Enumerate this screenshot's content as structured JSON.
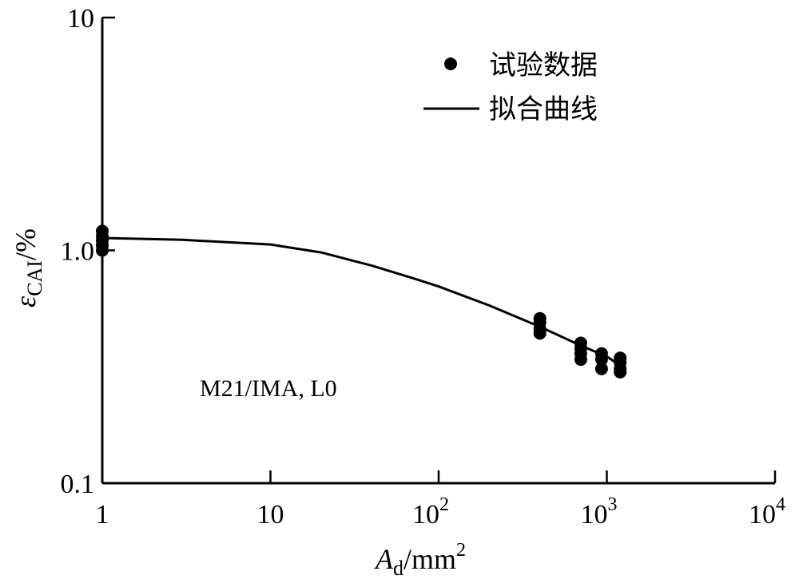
{
  "chart_data": {
    "type": "scatter",
    "x_scale": "log",
    "y_scale": "log",
    "xlim": [
      1,
      10000
    ],
    "ylim": [
      0.1,
      10
    ],
    "x_ticks": [
      {
        "value": 1,
        "base": "1",
        "exp": ""
      },
      {
        "value": 10,
        "base": "10",
        "exp": ""
      },
      {
        "value": 100,
        "base": "10",
        "exp": "2"
      },
      {
        "value": 1000,
        "base": "10",
        "exp": "3"
      },
      {
        "value": 10000,
        "base": "10",
        "exp": "4"
      }
    ],
    "y_ticks": [
      {
        "value": 10,
        "label": "10"
      },
      {
        "value": 1,
        "label": "1.0"
      },
      {
        "value": 0.1,
        "label": "0.1"
      }
    ],
    "xlabel": {
      "main": "A",
      "sub": "d",
      "unit": "/mm",
      "sup": "2"
    },
    "ylabel": {
      "main": "ε",
      "sub": "CAI",
      "unit": "/%"
    },
    "annotation": "M21/IMA, L0",
    "legend": {
      "position": "top-right",
      "entries": [
        {
          "label": "试验数据",
          "marker": "dot"
        },
        {
          "label": "拟合曲线",
          "marker": "line"
        }
      ]
    },
    "series": [
      {
        "name": "试验数据",
        "kind": "scatter",
        "color": "#000000",
        "points": [
          {
            "x": 1,
            "y": 1.0
          },
          {
            "x": 1,
            "y": 1.05
          },
          {
            "x": 1,
            "y": 1.1
          },
          {
            "x": 1,
            "y": 1.15
          },
          {
            "x": 1,
            "y": 1.21
          },
          {
            "x": 400,
            "y": 0.44
          },
          {
            "x": 400,
            "y": 0.46
          },
          {
            "x": 400,
            "y": 0.49
          },
          {
            "x": 400,
            "y": 0.51
          },
          {
            "x": 700,
            "y": 0.34
          },
          {
            "x": 700,
            "y": 0.36
          },
          {
            "x": 700,
            "y": 0.38
          },
          {
            "x": 700,
            "y": 0.4
          },
          {
            "x": 930,
            "y": 0.31
          },
          {
            "x": 930,
            "y": 0.34
          },
          {
            "x": 930,
            "y": 0.36
          },
          {
            "x": 1200,
            "y": 0.3
          },
          {
            "x": 1200,
            "y": 0.31
          },
          {
            "x": 1200,
            "y": 0.33
          },
          {
            "x": 1200,
            "y": 0.345
          }
        ]
      },
      {
        "name": "拟合曲线",
        "kind": "line",
        "color": "#000000",
        "points": [
          {
            "x": 1,
            "y": 1.13
          },
          {
            "x": 3,
            "y": 1.11
          },
          {
            "x": 10,
            "y": 1.06
          },
          {
            "x": 20,
            "y": 0.98
          },
          {
            "x": 40,
            "y": 0.86
          },
          {
            "x": 70,
            "y": 0.76
          },
          {
            "x": 100,
            "y": 0.7
          },
          {
            "x": 200,
            "y": 0.58
          },
          {
            "x": 400,
            "y": 0.47
          },
          {
            "x": 700,
            "y": 0.39
          },
          {
            "x": 1000,
            "y": 0.35
          },
          {
            "x": 1200,
            "y": 0.32
          }
        ]
      }
    ]
  }
}
